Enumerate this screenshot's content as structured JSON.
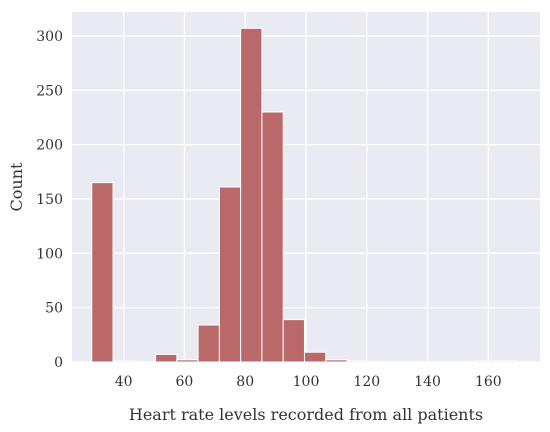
{
  "chart_data": {
    "type": "bar",
    "title": "",
    "xlabel": "Heart rate levels recorded from all patients",
    "ylabel": "Count",
    "bins": [
      {
        "x0": 29.5,
        "x1": 36.5,
        "count": 165
      },
      {
        "x0": 36.5,
        "x1": 43.5,
        "count": 1
      },
      {
        "x0": 43.5,
        "x1": 50.5,
        "count": 0
      },
      {
        "x0": 50.5,
        "x1": 57.5,
        "count": 7
      },
      {
        "x0": 57.5,
        "x1": 64.5,
        "count": 2
      },
      {
        "x0": 64.5,
        "x1": 71.5,
        "count": 34
      },
      {
        "x0": 71.5,
        "x1": 78.5,
        "count": 161
      },
      {
        "x0": 78.5,
        "x1": 85.5,
        "count": 307
      },
      {
        "x0": 85.5,
        "x1": 92.5,
        "count": 230
      },
      {
        "x0": 92.5,
        "x1": 99.5,
        "count": 39
      },
      {
        "x0": 99.5,
        "x1": 106.5,
        "count": 9
      },
      {
        "x0": 106.5,
        "x1": 113.5,
        "count": 2
      },
      {
        "x0": 113.5,
        "x1": 120.5,
        "count": 1
      },
      {
        "x0": 120.5,
        "x1": 127.5,
        "count": 0
      },
      {
        "x0": 127.5,
        "x1": 134.5,
        "count": 0
      },
      {
        "x0": 134.5,
        "x1": 141.5,
        "count": 0
      },
      {
        "x0": 141.5,
        "x1": 148.5,
        "count": 0
      },
      {
        "x0": 148.5,
        "x1": 155.5,
        "count": 0
      },
      {
        "x0": 155.5,
        "x1": 162.5,
        "count": 1
      },
      {
        "x0": 162.5,
        "x1": 169.5,
        "count": 1
      }
    ],
    "xlim": [
      23,
      177
    ],
    "ylim": [
      0,
      322
    ],
    "xticks": [
      40,
      60,
      80,
      100,
      120,
      140,
      160
    ],
    "yticks": [
      0,
      50,
      100,
      150,
      200,
      250,
      300
    ],
    "grid": true,
    "colors": {
      "bar": "#b76262",
      "background": "#eaeaf2",
      "grid": "#ffffff",
      "text": "#333333"
    }
  }
}
